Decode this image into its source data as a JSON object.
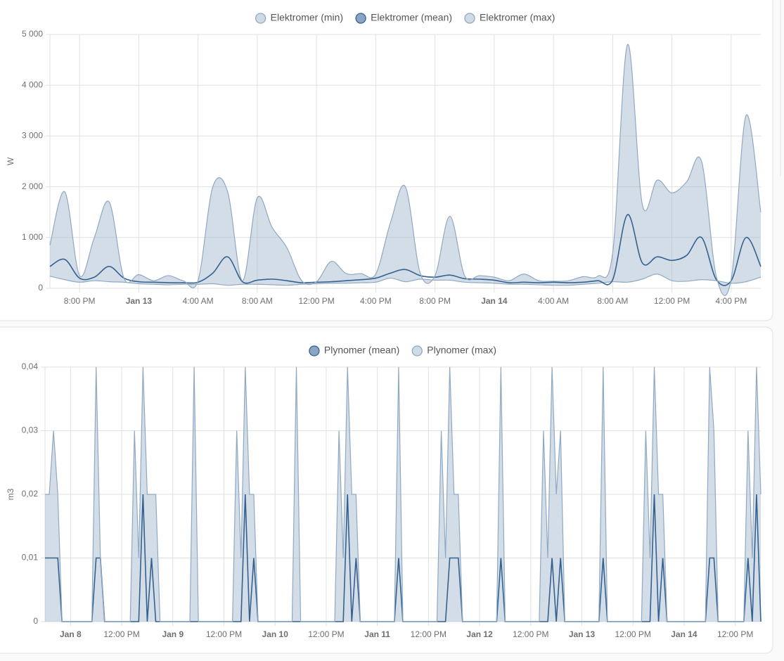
{
  "chart_data": [
    {
      "type": "line",
      "smooth": true,
      "y_label": "W",
      "grid": true,
      "ylim": [
        0,
        5000
      ],
      "yticks": [
        0,
        {
          "value": 1000,
          "label": "1 000"
        },
        {
          "value": 2000,
          "label": "2 000"
        },
        {
          "value": 3000,
          "label": "3 000"
        },
        {
          "value": 4000,
          "label": "4 000"
        },
        {
          "value": 5000,
          "label": "5 000"
        }
      ],
      "categories": [
        null,
        null,
        "8:00 PM",
        null,
        null,
        null,
        "Jan 13",
        null,
        null,
        null,
        "4:00 AM",
        null,
        null,
        null,
        "8:00 AM",
        null,
        null,
        null,
        "12:00 PM",
        null,
        null,
        null,
        "4:00 PM",
        null,
        null,
        null,
        "8:00 PM",
        null,
        null,
        null,
        "Jan 14",
        null,
        null,
        null,
        "4:00 AM",
        null,
        null,
        null,
        "8:00 AM",
        null,
        null,
        null,
        "12:00 PM",
        null,
        null,
        null,
        "4:00 PM",
        null,
        null
      ],
      "series": [
        {
          "name": "Elektromer (min)",
          "color": "#8fa9c2",
          "values": [
            240,
            170,
            120,
            150,
            130,
            120,
            90,
            80,
            70,
            80,
            80,
            90,
            60,
            80,
            80,
            70,
            60,
            80,
            90,
            100,
            100,
            110,
            120,
            200,
            130,
            180,
            160,
            160,
            120,
            110,
            100,
            80,
            80,
            70,
            60,
            60,
            80,
            100,
            130,
            120,
            180,
            280,
            150,
            140,
            170,
            150,
            100,
            130,
            220
          ]
        },
        {
          "name": "Elektromer (mean)",
          "color": "#35618f",
          "values": [
            430,
            570,
            200,
            220,
            430,
            200,
            130,
            120,
            110,
            110,
            120,
            300,
            620,
            130,
            160,
            180,
            150,
            110,
            120,
            130,
            150,
            170,
            200,
            300,
            370,
            250,
            220,
            260,
            190,
            180,
            160,
            110,
            120,
            110,
            120,
            110,
            120,
            150,
            170,
            1450,
            500,
            620,
            550,
            650,
            1000,
            170,
            150,
            1000,
            430
          ]
        },
        {
          "name": "Elektromer (max)",
          "color": "#8fa9c2",
          "values": [
            850,
            1900,
            250,
            1000,
            1700,
            200,
            270,
            150,
            250,
            150,
            150,
            2000,
            1900,
            150,
            1780,
            1200,
            800,
            150,
            130,
            530,
            290,
            290,
            280,
            1300,
            2000,
            300,
            250,
            1420,
            250,
            250,
            220,
            150,
            280,
            150,
            140,
            150,
            230,
            240,
            700,
            4800,
            1650,
            2130,
            1880,
            2100,
            2500,
            230,
            180,
            3400,
            1500
          ]
        }
      ]
    },
    {
      "type": "line",
      "smooth": false,
      "y_label": "m3",
      "grid": true,
      "ylim": [
        0,
        0.04
      ],
      "yticks": [
        0,
        {
          "value": 0.01,
          "label": "0,01"
        },
        {
          "value": 0.02,
          "label": "0,02"
        },
        {
          "value": 0.03,
          "label": "0,03"
        },
        {
          "value": 0.04,
          "label": "0,04"
        }
      ],
      "categories": [
        null,
        null,
        null,
        null,
        null,
        null,
        "Jan 8",
        null,
        null,
        null,
        null,
        null,
        null,
        null,
        null,
        null,
        null,
        null,
        "12:00 PM",
        null,
        null,
        null,
        null,
        null,
        null,
        null,
        null,
        null,
        null,
        null,
        "Jan 9",
        null,
        null,
        null,
        null,
        null,
        null,
        null,
        null,
        null,
        null,
        null,
        "12:00 PM",
        null,
        null,
        null,
        null,
        null,
        null,
        null,
        null,
        null,
        null,
        null,
        "Jan 10",
        null,
        null,
        null,
        null,
        null,
        null,
        null,
        null,
        null,
        null,
        null,
        "12:00 PM",
        null,
        null,
        null,
        null,
        null,
        null,
        null,
        null,
        null,
        null,
        null,
        "Jan 11",
        null,
        null,
        null,
        null,
        null,
        null,
        null,
        null,
        null,
        null,
        null,
        "12:00 PM",
        null,
        null,
        null,
        null,
        null,
        null,
        null,
        null,
        null,
        null,
        null,
        "Jan 12",
        null,
        null,
        null,
        null,
        null,
        null,
        null,
        null,
        null,
        null,
        null,
        "12:00 PM",
        null,
        null,
        null,
        null,
        null,
        null,
        null,
        null,
        null,
        null,
        null,
        "Jan 13",
        null,
        null,
        null,
        null,
        null,
        null,
        null,
        null,
        null,
        null,
        null,
        "12:00 PM",
        null,
        null,
        null,
        null,
        null,
        null,
        null,
        null,
        null,
        null,
        null,
        "Jan 14",
        null,
        null,
        null,
        null,
        null,
        null,
        null,
        null,
        null,
        null,
        null,
        "12:00 PM",
        null,
        null,
        null,
        null,
        null,
        null
      ],
      "series": [
        {
          "name": "Plynomer (mean)",
          "color": "#35618f",
          "values": [
            0.01,
            0.01,
            0.01,
            0.01,
            0,
            0,
            0,
            0,
            0,
            0,
            0,
            0,
            0.01,
            0.01,
            0,
            0,
            0,
            0,
            0,
            0,
            0,
            0,
            0,
            0.02,
            0,
            0.01,
            0,
            0,
            0,
            0,
            0,
            0,
            0,
            0,
            0,
            0,
            0,
            0,
            0,
            0,
            0,
            0,
            0,
            0,
            0,
            0,
            0,
            0.02,
            0,
            0.01,
            0,
            0,
            0,
            0,
            0,
            0,
            0,
            0,
            0,
            0,
            0,
            0,
            0,
            0,
            0,
            0,
            0,
            0,
            0,
            0,
            0,
            0.02,
            0,
            0.01,
            0,
            0,
            0,
            0,
            0,
            0,
            0,
            0,
            0,
            0.01,
            0,
            0,
            0,
            0,
            0,
            0,
            0,
            0,
            0,
            0,
            0,
            0.01,
            0.01,
            0.01,
            0,
            0,
            0,
            0,
            0,
            0,
            0,
            0,
            0,
            0.01,
            0,
            0,
            0,
            0,
            0,
            0,
            0,
            0,
            0,
            0,
            0,
            0.01,
            0,
            0.01,
            0,
            0,
            0,
            0,
            0,
            0,
            0,
            0,
            0,
            0.01,
            0,
            0,
            0,
            0,
            0,
            0,
            0,
            0,
            0,
            0,
            0,
            0.02,
            0,
            0.01,
            0,
            0,
            0,
            0,
            0,
            0,
            0,
            0,
            0,
            0,
            0.01,
            0.01,
            0,
            0,
            0,
            0,
            0,
            0,
            0,
            0.01,
            0,
            0.02,
            0
          ]
        },
        {
          "name": "Plynomer (max)",
          "color": "#8fa9c2",
          "values": [
            0.02,
            0.02,
            0.03,
            0.02,
            0,
            0,
            0,
            0,
            0,
            0,
            0,
            0,
            0.04,
            0.01,
            0,
            0,
            0,
            0,
            0,
            0,
            0,
            0.03,
            0.01,
            0.04,
            0.02,
            0.02,
            0.02,
            0,
            0,
            0,
            0,
            0,
            0,
            0,
            0,
            0.04,
            0,
            0,
            0,
            0,
            0,
            0,
            0,
            0,
            0,
            0.03,
            0.01,
            0.04,
            0.02,
            0.02,
            0,
            0,
            0,
            0,
            0,
            0,
            0,
            0,
            0,
            0.04,
            0,
            0,
            0,
            0,
            0,
            0,
            0,
            0,
            0,
            0.03,
            0.01,
            0.04,
            0.02,
            0.02,
            0,
            0,
            0,
            0,
            0,
            0,
            0,
            0,
            0,
            0.04,
            0,
            0,
            0,
            0,
            0,
            0,
            0,
            0,
            0,
            0.03,
            0.01,
            0.04,
            0.02,
            0.02,
            0,
            0,
            0,
            0,
            0,
            0,
            0,
            0,
            0,
            0.04,
            0,
            0,
            0,
            0,
            0,
            0,
            0,
            0,
            0,
            0.03,
            0.01,
            0.04,
            0.02,
            0.03,
            0,
            0,
            0,
            0,
            0,
            0,
            0,
            0,
            0,
            0.04,
            0,
            0,
            0,
            0,
            0,
            0,
            0,
            0,
            0,
            0.03,
            0.01,
            0.04,
            0.02,
            0.02,
            0,
            0,
            0,
            0,
            0,
            0,
            0,
            0,
            0,
            0,
            0.04,
            0.03,
            0,
            0,
            0,
            0,
            0,
            0,
            0,
            0.03,
            0.01,
            0.04,
            0.02
          ]
        }
      ]
    }
  ]
}
